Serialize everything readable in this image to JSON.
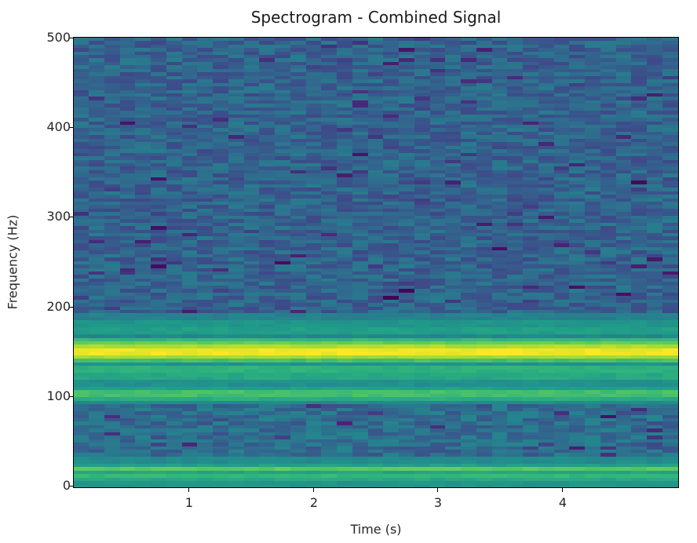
{
  "chart_data": {
    "type": "heatmap",
    "title": "Spectrogram - Combined Signal",
    "xlabel": "Time (s)",
    "ylabel": "Frequency (Hz)",
    "xlim": [
      0.1,
      4.95
    ],
    "ylim": [
      -2,
      500
    ],
    "x_ticks": [
      1,
      2,
      3,
      4
    ],
    "y_ticks": [
      0,
      100,
      200,
      300,
      400,
      500
    ],
    "colormap": "viridis",
    "grid": false,
    "legend": null,
    "time_bins": 39,
    "freq_bin_hz": 3.9,
    "dominant_components_hz": [
      {
        "freq": 150,
        "level": "very high (yellow)"
      },
      {
        "freq": 100,
        "level": "moderate (green)"
      },
      {
        "freq": 18,
        "level": "moderate (light green)"
      }
    ],
    "band_profile": [
      {
        "f0": 0,
        "f1": 4,
        "level": 0.52
      },
      {
        "f0": 4,
        "f1": 8,
        "level": 0.6
      },
      {
        "f0": 8,
        "f1": 12,
        "level": 0.66
      },
      {
        "f0": 12,
        "f1": 16,
        "level": 0.58
      },
      {
        "f0": 16,
        "f1": 20,
        "level": 0.74
      },
      {
        "f0": 20,
        "f1": 24,
        "level": 0.56
      },
      {
        "f0": 24,
        "f1": 32,
        "level": 0.48
      },
      {
        "f0": 32,
        "f1": 90,
        "level": 0.36
      },
      {
        "f0": 90,
        "f1": 96,
        "level": 0.48
      },
      {
        "f0": 96,
        "f1": 100,
        "level": 0.62
      },
      {
        "f0": 100,
        "f1": 106,
        "level": 0.7
      },
      {
        "f0": 106,
        "f1": 110,
        "level": 0.56
      },
      {
        "f0": 110,
        "f1": 118,
        "level": 0.5
      },
      {
        "f0": 118,
        "f1": 126,
        "level": 0.6
      },
      {
        "f0": 126,
        "f1": 134,
        "level": 0.64
      },
      {
        "f0": 134,
        "f1": 138,
        "level": 0.5
      },
      {
        "f0": 138,
        "f1": 142,
        "level": 0.7
      },
      {
        "f0": 142,
        "f1": 146,
        "level": 0.86
      },
      {
        "f0": 146,
        "f1": 154,
        "level": 0.98
      },
      {
        "f0": 154,
        "f1": 158,
        "level": 0.88
      },
      {
        "f0": 158,
        "f1": 162,
        "level": 0.76
      },
      {
        "f0": 162,
        "f1": 166,
        "level": 0.66
      },
      {
        "f0": 166,
        "f1": 170,
        "level": 0.46
      },
      {
        "f0": 170,
        "f1": 178,
        "level": 0.56
      },
      {
        "f0": 178,
        "f1": 186,
        "level": 0.52
      },
      {
        "f0": 186,
        "f1": 192,
        "level": 0.44
      },
      {
        "f0": 192,
        "f1": 500,
        "level": 0.32
      }
    ],
    "noise_floor_level": 0.32,
    "noise_amplitude": 0.1
  },
  "axes": {
    "y_tick_labels": [
      "0",
      "100",
      "200",
      "300",
      "400",
      "500"
    ],
    "x_tick_labels": [
      "1",
      "2",
      "3",
      "4"
    ]
  },
  "colors": {
    "viridis": [
      "#440154",
      "#482878",
      "#3e4989",
      "#31688e",
      "#26828e",
      "#1f9e89",
      "#35b779",
      "#6ece58",
      "#b5de2b",
      "#fde725"
    ]
  }
}
